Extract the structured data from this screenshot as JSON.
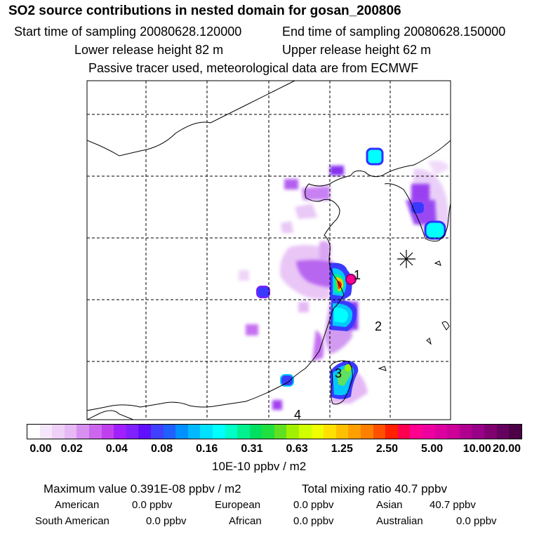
{
  "title": "SO2 source contributions in nested domain for gosan_200806",
  "sampling": {
    "start": "Start time of sampling 20080628.120000",
    "end": "End time of sampling 20080628.150000"
  },
  "release": {
    "lower": "Lower release height   82 m",
    "upper": "Upper release height   62 m"
  },
  "note": "Passive tracer used, meteorological data are from ECMWF",
  "map": {
    "region_labels": [
      "1",
      "2",
      "3",
      "4"
    ],
    "receptor_marker": "gosan-receptor-star-icon"
  },
  "colorbar": {
    "ticks": [
      "0.00",
      "0.02",
      "0.04",
      "0.08",
      "0.16",
      "0.31",
      "0.63",
      "1.25",
      "2.50",
      "5.00",
      "10.00",
      "20.00"
    ],
    "colors": [
      "#ffffff",
      "#f6e6fb",
      "#efd0f7",
      "#e6b8f4",
      "#d890f0",
      "#cc66ee",
      "#c040ee",
      "#a020ff",
      "#8020ff",
      "#6010ff",
      "#4040ff",
      "#2060ff",
      "#0090ff",
      "#00b8ff",
      "#00e0ff",
      "#00ffff",
      "#00ffc8",
      "#00f090",
      "#00e060",
      "#20e040",
      "#60e020",
      "#a0f000",
      "#d0ff00",
      "#f0ff00",
      "#ffe000",
      "#ffc000",
      "#ffa000",
      "#ff8000",
      "#ff5000",
      "#ff2000",
      "#ff0050",
      "#ff0090",
      "#ee00a0",
      "#dd00a0",
      "#cc0099",
      "#b00090",
      "#990088",
      "#800070",
      "#660060",
      "#4d0048"
    ],
    "unit": "10E-10 ppbv / m2"
  },
  "summary": {
    "max_value": "Maximum value  0.391E-08 ppbv / m2",
    "total_mixing": "Total mixing ratio      40.7 ppbv",
    "rows": [
      [
        {
          "label": "American",
          "value": "0.0 ppbv"
        },
        {
          "label": "European",
          "value": "0.0 ppbv"
        },
        {
          "label": "Asian",
          "value": "40.7 ppbv"
        }
      ],
      [
        {
          "label": "South American",
          "value": "0.0 ppbv"
        },
        {
          "label": "African",
          "value": "0.0 ppbv"
        },
        {
          "label": "Australian",
          "value": "0.0 ppbv"
        }
      ]
    ]
  }
}
